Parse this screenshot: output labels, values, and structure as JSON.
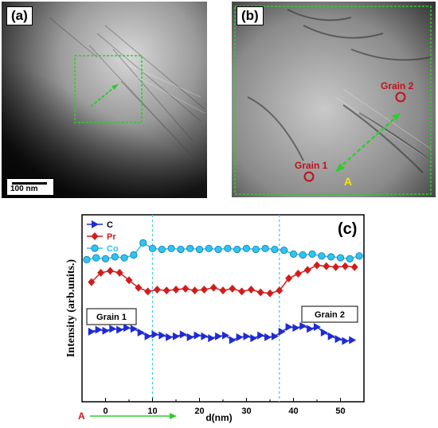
{
  "panels": {
    "a": {
      "tag": "(a)",
      "scalebar": "100 nm"
    },
    "b": {
      "tag": "(b)",
      "grain1": "Grain 1",
      "grain2": "Grain 2",
      "marker": "A"
    }
  },
  "chart_data": {
    "type": "line",
    "panel_label": "(c)",
    "xlabel": "d(nm)",
    "ylabel": "Intensity (arb.units.)",
    "xlim": [
      -5,
      55
    ],
    "xticks": [
      0,
      10,
      20,
      30,
      40,
      50
    ],
    "ylim": [
      0,
      10
    ],
    "start_marker": "A",
    "grain_labels": [
      "Grain 1",
      "Grain 2"
    ],
    "boundaries": [
      10,
      37
    ],
    "colors": {
      "C": "#1f2bd1",
      "Pr": "#d11c1c",
      "Co": "#2fc4f2",
      "boundary": "#39c9ef",
      "arrow": "#2ecc2e"
    },
    "series": [
      {
        "name": "C",
        "marker": "triangle-right",
        "x": [
          -3,
          -1.5,
          0,
          1.5,
          3,
          4.5,
          6,
          7.5,
          9,
          10.5,
          12,
          13.5,
          15,
          16.5,
          18,
          19.5,
          21,
          22.5,
          24,
          25.5,
          27,
          28.5,
          30,
          31.5,
          33,
          34.5,
          36,
          37.5,
          39,
          40.5,
          42,
          43.5,
          45,
          46.5,
          48,
          49.5,
          51,
          52.5
        ],
        "y": [
          3.75,
          3.85,
          3.8,
          3.9,
          3.85,
          3.95,
          3.9,
          3.7,
          3.5,
          3.6,
          3.55,
          3.45,
          3.5,
          3.6,
          3.45,
          3.55,
          3.5,
          3.4,
          3.5,
          3.55,
          3.3,
          3.45,
          3.5,
          3.4,
          3.55,
          3.45,
          3.5,
          3.75,
          4.0,
          3.95,
          4.05,
          3.9,
          4.0,
          3.7,
          3.5,
          3.35,
          3.25,
          3.3
        ]
      },
      {
        "name": "Pr",
        "marker": "diamond",
        "x": [
          -3,
          -1,
          1,
          3,
          5,
          7,
          9,
          11,
          13,
          15,
          17,
          19,
          21,
          23,
          25,
          27,
          29,
          31,
          33,
          35,
          37,
          39,
          41,
          43,
          45,
          47,
          49,
          51,
          53
        ],
        "y": [
          6.4,
          6.9,
          7.0,
          6.9,
          6.5,
          6.1,
          5.9,
          6.0,
          5.95,
          6.0,
          6.05,
          5.95,
          6.0,
          6.1,
          5.95,
          6.05,
          5.9,
          6.0,
          5.85,
          5.8,
          5.95,
          6.6,
          6.85,
          7.05,
          7.3,
          7.25,
          7.2,
          7.25,
          7.2
        ]
      },
      {
        "name": "Co",
        "marker": "circle",
        "x": [
          -4,
          -2,
          0,
          2,
          4,
          6,
          8,
          10,
          12,
          14,
          16,
          18,
          20,
          22,
          24,
          26,
          28,
          30,
          32,
          34,
          36,
          38,
          40,
          42,
          44,
          46,
          48,
          50,
          52,
          54
        ],
        "y": [
          7.6,
          7.7,
          7.65,
          7.75,
          7.7,
          7.85,
          8.5,
          8.2,
          8.15,
          8.2,
          8.15,
          8.2,
          8.15,
          8.2,
          8.15,
          8.2,
          8.15,
          8.2,
          8.15,
          8.2,
          8.15,
          8.1,
          7.9,
          7.85,
          7.9,
          7.8,
          7.75,
          7.7,
          7.65,
          7.8
        ]
      }
    ]
  }
}
